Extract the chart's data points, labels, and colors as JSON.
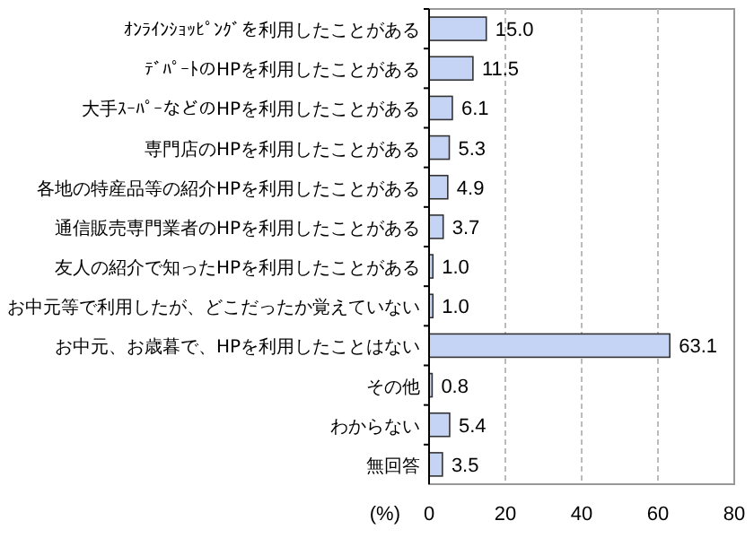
{
  "chart_data": {
    "type": "bar",
    "orientation": "horizontal",
    "xlabel": "(%)",
    "categories": [
      "ｵﾝﾗｲﾝｼｮｯﾋﾟﾝｸﾞを利用したことがある",
      "ﾃﾞﾊﾟｰﾄのHPを利用したことがある",
      "大手ｽｰﾊﾟｰなどのHPを利用したことがある",
      "専門店のHPを利用したことがある",
      "各地の特産品等の紹介HPを利用したことがある",
      "通信販売専門業者のHPを利用したことがある",
      "友人の紹介で知ったHPを利用したことがある",
      "お中元等で利用したが、どこだったか覚えていない",
      "お中元、お歳暮で、HPを利用したことはない",
      "その他",
      "わからない",
      "無回答"
    ],
    "values": [
      15.0,
      11.5,
      6.1,
      5.3,
      4.9,
      3.7,
      1.0,
      1.0,
      63.1,
      0.8,
      5.4,
      3.5
    ],
    "value_labels": [
      "15.0",
      "11.5",
      "6.1",
      "5.3",
      "4.9",
      "3.7",
      "1.0",
      "1.0",
      "63.1",
      "0.8",
      "5.4",
      "3.5"
    ],
    "color": "#c5d3f5",
    "xlim": [
      0,
      80
    ],
    "xticks": [
      0,
      20,
      40,
      60,
      80
    ],
    "grid": "x"
  }
}
